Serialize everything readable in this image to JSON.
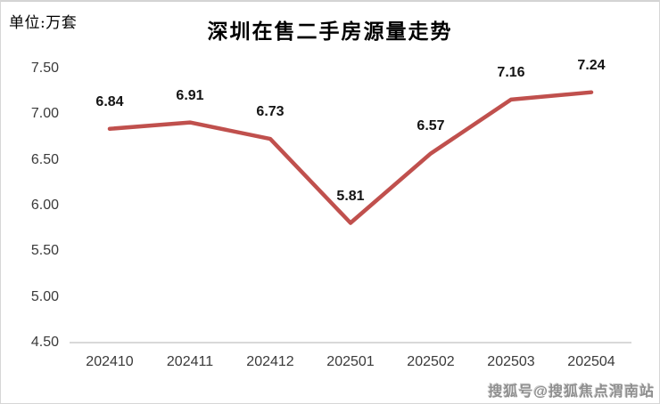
{
  "meta": {
    "unit_label": "单位:万套",
    "watermark": "搜狐号@搜狐焦点渭南站"
  },
  "chart_data": {
    "type": "line",
    "title": "深圳在售二手房源量走势",
    "categories": [
      "202410",
      "202411",
      "202412",
      "202501",
      "202502",
      "202503",
      "202504"
    ],
    "values": [
      6.84,
      6.91,
      6.73,
      5.81,
      6.57,
      7.16,
      7.24
    ],
    "value_labels": [
      "6.84",
      "6.91",
      "6.73",
      "5.81",
      "6.57",
      "7.16",
      "7.24"
    ],
    "yticks": [
      "7.50",
      "7.00",
      "6.50",
      "6.00",
      "5.50",
      "5.00",
      "4.50"
    ],
    "ylim": [
      4.5,
      7.5
    ],
    "xlabel": "",
    "ylabel": "",
    "line_color": "#c0504d",
    "axis_line_color": "#d9d9d9",
    "grid": false,
    "legend_position": "none",
    "markers": false
  }
}
